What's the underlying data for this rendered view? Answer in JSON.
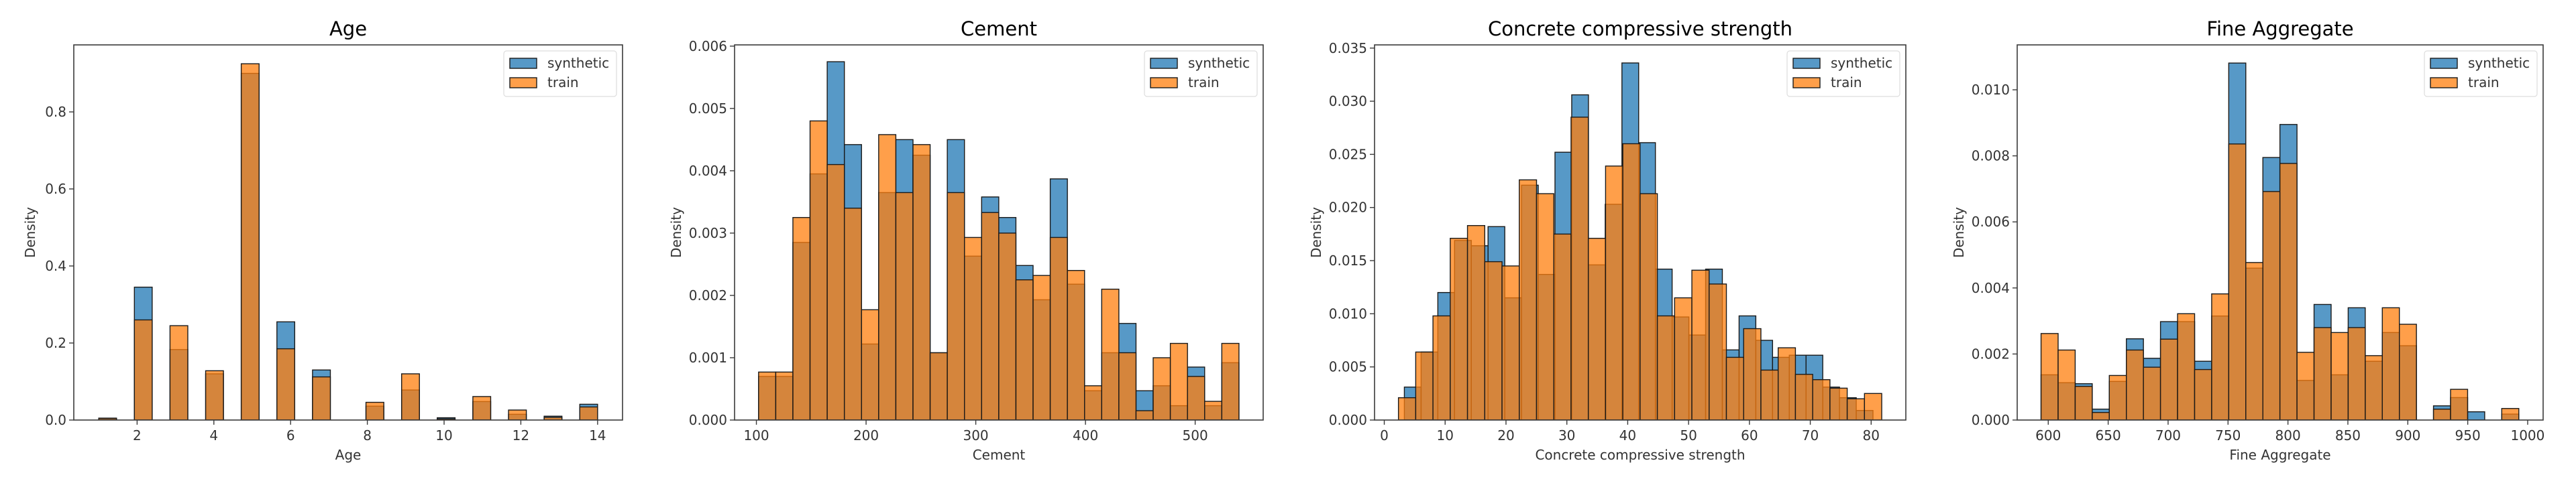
{
  "chart_data": [
    {
      "type": "bar",
      "subtype": "overlaid-histogram",
      "title": "Age",
      "xlabel": "Age",
      "ylabel": "Density",
      "xlim": [
        0.35,
        14.65
      ],
      "ylim": [
        0,
        0.974
      ],
      "xticks": [
        2,
        4,
        6,
        8,
        10,
        12,
        14
      ],
      "xtick_labels": [
        "2",
        "4",
        "6",
        "8",
        "10",
        "12",
        "14"
      ],
      "yticks": [
        0.0,
        0.2,
        0.4,
        0.6,
        0.8
      ],
      "ytick_labels": [
        "0.0",
        "0.2",
        "0.4",
        "0.6",
        "0.8"
      ],
      "grid": false,
      "legend": {
        "position": "top-right",
        "entries": [
          "synthetic",
          "train"
        ]
      },
      "series": [
        {
          "name": "synthetic",
          "color": "#1f77b4",
          "bins": [
            [
              1.0,
              1.464
            ],
            [
              1.929,
              2.393
            ],
            [
              2.857,
              3.321
            ],
            [
              3.786,
              4.25
            ],
            [
              4.714,
              5.179
            ],
            [
              5.643,
              6.107
            ],
            [
              6.571,
              7.036
            ],
            [
              7.964,
              8.429
            ],
            [
              8.893,
              9.357
            ],
            [
              9.821,
              10.286
            ],
            [
              10.75,
              11.214
            ],
            [
              11.679,
              12.143
            ],
            [
              12.607,
              13.071
            ],
            [
              13.536,
              14.0
            ]
          ],
          "values": [
            0.005,
            0.345,
            0.183,
            0.12,
            0.9,
            0.255,
            0.13,
            0.036,
            0.078,
            0.006,
            0.048,
            0.015,
            0.01,
            0.041
          ]
        },
        {
          "name": "train",
          "color": "#ff7f0e",
          "bins": [
            [
              1.0,
              1.464
            ],
            [
              1.929,
              2.393
            ],
            [
              2.857,
              3.321
            ],
            [
              3.786,
              4.25
            ],
            [
              4.714,
              5.179
            ],
            [
              5.643,
              6.107
            ],
            [
              6.571,
              7.036
            ],
            [
              7.964,
              8.429
            ],
            [
              8.893,
              9.357
            ],
            [
              9.821,
              10.286
            ],
            [
              10.75,
              11.214
            ],
            [
              11.679,
              12.143
            ],
            [
              12.607,
              13.071
            ],
            [
              13.536,
              14.0
            ]
          ],
          "values": [
            0.004,
            0.26,
            0.245,
            0.128,
            0.925,
            0.185,
            0.112,
            0.046,
            0.12,
            0.003,
            0.061,
            0.026,
            0.007,
            0.034
          ]
        }
      ]
    },
    {
      "type": "bar",
      "subtype": "overlaid-histogram",
      "title": "Cement",
      "xlabel": "Cement",
      "ylabel": "Density",
      "xlim": [
        80.1,
        562.0
      ],
      "ylim": [
        0,
        0.00602
      ],
      "xticks": [
        100,
        200,
        300,
        400,
        500
      ],
      "xtick_labels": [
        "100",
        "200",
        "300",
        "400",
        "500"
      ],
      "yticks": [
        0.0,
        0.001,
        0.002,
        0.003,
        0.004,
        0.005,
        0.006
      ],
      "ytick_labels": [
        "0.000",
        "0.001",
        "0.002",
        "0.003",
        "0.004",
        "0.005",
        "0.006"
      ],
      "grid": false,
      "legend": {
        "position": "top-right",
        "entries": [
          "synthetic",
          "train"
        ]
      },
      "bin_start": 102.0,
      "bin_width": 15.64,
      "series": [
        {
          "name": "synthetic",
          "color": "#1f77b4",
          "values": [
            0.0007,
            0.0007,
            0.00285,
            0.00395,
            0.00575,
            0.00442,
            0.00122,
            0.00365,
            0.0045,
            0.00425,
            0.00108,
            0.0045,
            0.00263,
            0.00358,
            0.00325,
            0.00248,
            0.00193,
            0.00387,
            0.00218,
            0.00047,
            0.00108,
            0.00155,
            0.00047,
            0.00055,
            0.00023,
            0.00085,
            0.00023,
            0.00092
          ]
        },
        {
          "name": "train",
          "color": "#ff7f0e",
          "values": [
            0.00077,
            0.00077,
            0.00325,
            0.0048,
            0.0041,
            0.0034,
            0.00177,
            0.00458,
            0.00365,
            0.00442,
            0.00108,
            0.00365,
            0.00293,
            0.00333,
            0.003,
            0.00225,
            0.00232,
            0.00293,
            0.0024,
            0.00055,
            0.0021,
            0.00108,
            0.00015,
            0.001,
            0.00123,
            0.0007,
            0.0003,
            0.00123
          ]
        }
      ]
    },
    {
      "type": "bar",
      "subtype": "overlaid-histogram",
      "title": "Concrete compressive strength",
      "xlabel": "Concrete compressive strength",
      "ylabel": "Density",
      "xlim": [
        -1.6,
        85.7
      ],
      "ylim": [
        0,
        0.0353
      ],
      "xticks": [
        0,
        10,
        20,
        30,
        40,
        50,
        60,
        70,
        80
      ],
      "xtick_labels": [
        "0",
        "10",
        "20",
        "30",
        "40",
        "50",
        "60",
        "70",
        "80"
      ],
      "yticks": [
        0.0,
        0.005,
        0.01,
        0.015,
        0.02,
        0.025,
        0.03,
        0.035
      ],
      "ytick_labels": [
        "0.000",
        "0.005",
        "0.010",
        "0.015",
        "0.020",
        "0.025",
        "0.030",
        "0.035"
      ],
      "grid": false,
      "legend": {
        "position": "top-right",
        "entries": [
          "synthetic",
          "train"
        ]
      },
      "series": [
        {
          "name": "synthetic",
          "color": "#1f77b4",
          "bin_start": 3.3,
          "bin_width": 2.75,
          "values": [
            0.0031,
            0.0064,
            0.012,
            0.0169,
            0.0164,
            0.0182,
            0.0115,
            0.0221,
            0.0137,
            0.0252,
            0.0306,
            0.0146,
            0.0203,
            0.0336,
            0.0261,
            0.0142,
            0.0097,
            0.008,
            0.0142,
            0.0066,
            0.0098,
            0.0075,
            0.0059,
            0.0061,
            0.0061,
            0.0031,
            0.0021,
            0.0009
          ]
        },
        {
          "name": "train",
          "color": "#ff7f0e",
          "bin_start": 2.33,
          "bin_width": 2.836,
          "values": [
            0.0021,
            0.0064,
            0.0098,
            0.0171,
            0.0183,
            0.0149,
            0.0145,
            0.0226,
            0.0213,
            0.0175,
            0.0285,
            0.0171,
            0.0239,
            0.026,
            0.0213,
            0.0098,
            0.0115,
            0.0141,
            0.0128,
            0.0059,
            0.0086,
            0.0047,
            0.0068,
            0.0043,
            0.0038,
            0.003,
            0.002,
            0.0025
          ]
        }
      ]
    },
    {
      "type": "bar",
      "subtype": "overlaid-histogram",
      "title": "Fine Aggregate",
      "xlabel": "Fine Aggregate",
      "ylabel": "Density",
      "xlim": [
        574.1,
        1012.9
      ],
      "ylim": [
        0,
        0.01136
      ],
      "xticks": [
        600,
        650,
        700,
        750,
        800,
        850,
        900,
        950,
        1000
      ],
      "xtick_labels": [
        "600",
        "650",
        "700",
        "750",
        "800",
        "850",
        "900",
        "950",
        "1000"
      ],
      "yticks": [
        0.0,
        0.002,
        0.004,
        0.006,
        0.008,
        0.01
      ],
      "ytick_labels": [
        "0.000",
        "0.002",
        "0.004",
        "0.006",
        "0.008",
        "0.010"
      ],
      "grid": false,
      "legend": {
        "position": "top-right",
        "entries": [
          "synthetic",
          "train"
        ]
      },
      "bin_start": 594.0,
      "bin_width": 14.236,
      "series": [
        {
          "name": "synthetic",
          "color": "#1f77b4",
          "values": [
            0.00137,
            0.00113,
            0.0011,
            0.00033,
            0.00117,
            0.00246,
            0.00187,
            0.00298,
            0.00298,
            0.00178,
            0.00315,
            0.01081,
            0.0046,
            0.00795,
            0.00895,
            0.0012,
            0.0035,
            0.00137,
            0.0034,
            0.00178,
            0.00265,
            0.00225,
            0,
            0.00043,
            0.00068,
            0.00025,
            0,
            0.00018
          ]
        },
        {
          "name": "train",
          "color": "#ff7f0e",
          "values": [
            0.00262,
            0.00212,
            0.00102,
            0.00023,
            0.00135,
            0.00212,
            0.0016,
            0.00245,
            0.00322,
            0.00153,
            0.00382,
            0.00836,
            0.00477,
            0.00692,
            0.00777,
            0.00205,
            0.0028,
            0.00265,
            0.0028,
            0.00195,
            0.0034,
            0.0029,
            0,
            0.00033,
            0.00093,
            0,
            0,
            0.00035
          ]
        }
      ]
    }
  ]
}
